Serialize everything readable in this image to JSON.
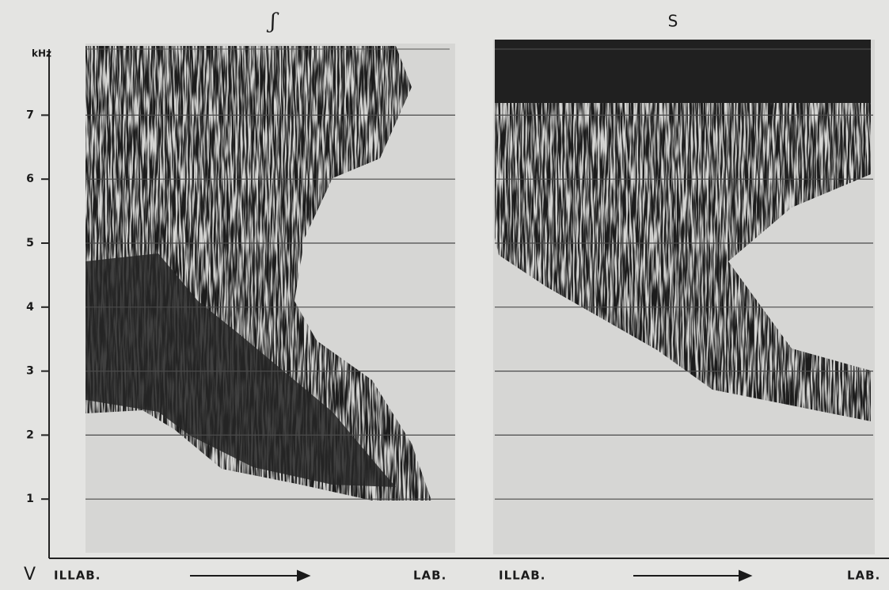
{
  "corner_label": "V",
  "axis": {
    "unit": "kHz",
    "ticks": [
      1,
      2,
      3,
      4,
      5,
      6,
      7
    ]
  },
  "panels": [
    {
      "title": "ʃ",
      "start_label": "ILLAB.",
      "end_label": "LAB."
    },
    {
      "title": "S",
      "start_label": "ILLAB.",
      "end_label": "LAB."
    }
  ]
}
